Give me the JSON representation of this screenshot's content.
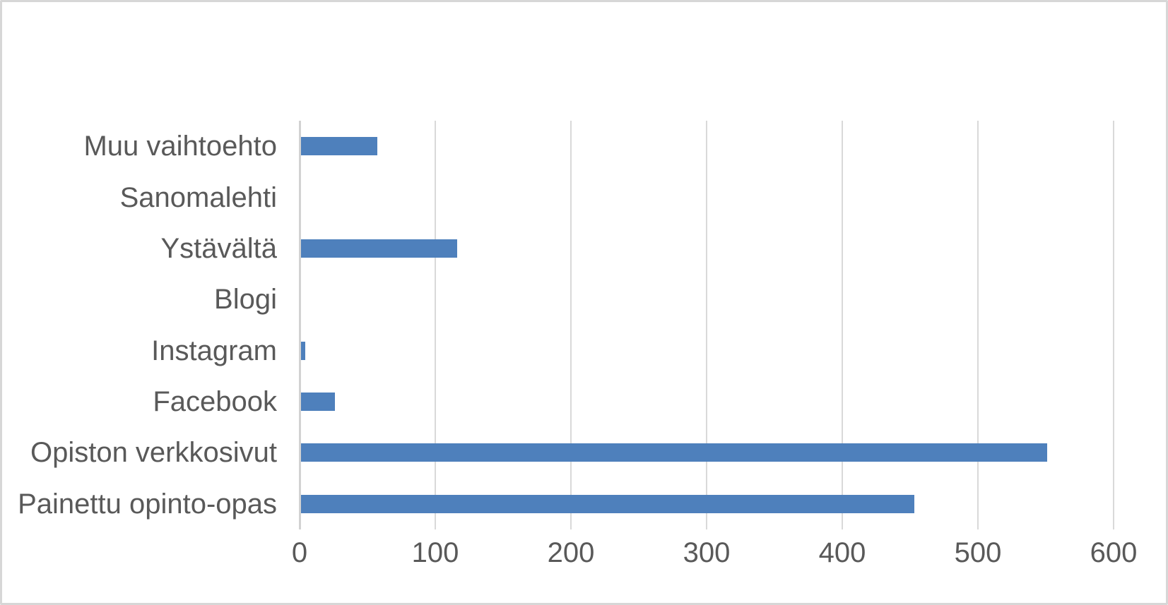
{
  "chart_data": {
    "type": "bar",
    "orientation": "horizontal",
    "title": "",
    "xlabel": "",
    "ylabel": "",
    "categories": [
      "Muu vaihtoehto",
      "Sanomalehti",
      "Ystävältä",
      "Blogi",
      "Instagram",
      "Facebook",
      "Opiston verkkosivut",
      "Painettu opinto-opas"
    ],
    "values": [
      56,
      0,
      115,
      0,
      3,
      25,
      550,
      452
    ],
    "xlim": [
      0,
      600
    ],
    "xticks": [
      0,
      100,
      200,
      300,
      400,
      500,
      600
    ],
    "grid": true,
    "legend": false,
    "bar_color": "#4e80bc",
    "gridline_color": "#d9d9d9",
    "axis_line_color": "#d2d2d2",
    "label_color": "#595959",
    "background_color": "#ffffff",
    "border_color": "#d7d7d7"
  }
}
